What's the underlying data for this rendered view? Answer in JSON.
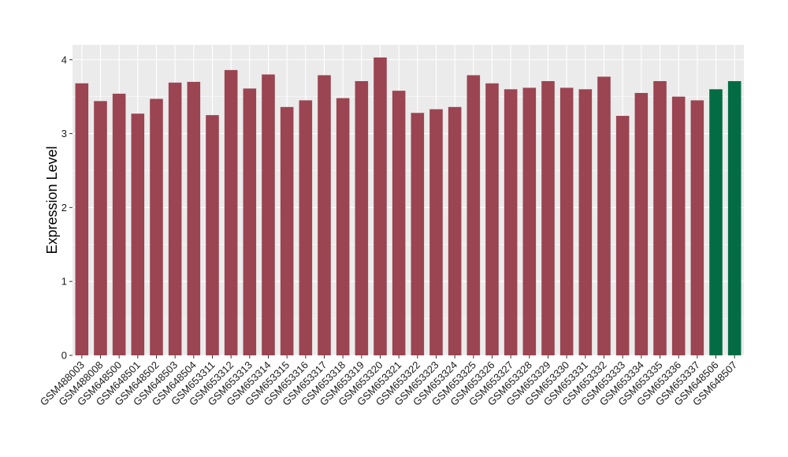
{
  "chart_data": {
    "type": "bar",
    "ylabel": "Expression Level",
    "xlabel": "",
    "ylim": [
      0,
      4.2
    ],
    "yticks": [
      0,
      1,
      2,
      3,
      4
    ],
    "grid": true,
    "colors": {
      "default": "#9b4452",
      "highlight": "#046c45",
      "panel": "#ebebeb",
      "gridline": "#ffffff"
    },
    "categories": [
      "GSM488003",
      "GSM488008",
      "GSM648500",
      "GSM648501",
      "GSM648502",
      "GSM648503",
      "GSM648504",
      "GSM653311",
      "GSM653312",
      "GSM653313",
      "GSM653314",
      "GSM653315",
      "GSM653316",
      "GSM653317",
      "GSM653318",
      "GSM653319",
      "GSM653320",
      "GSM653321",
      "GSM653322",
      "GSM653323",
      "GSM653324",
      "GSM653325",
      "GSM653326",
      "GSM653327",
      "GSM653328",
      "GSM653329",
      "GSM653330",
      "GSM653331",
      "GSM653332",
      "GSM653333",
      "GSM653334",
      "GSM653335",
      "GSM653336",
      "GSM653337",
      "GSM648506",
      "GSM648507"
    ],
    "values": [
      3.68,
      3.44,
      3.54,
      3.27,
      3.47,
      3.69,
      3.7,
      3.25,
      3.86,
      3.61,
      3.8,
      3.36,
      3.45,
      3.79,
      3.48,
      3.71,
      4.03,
      3.58,
      3.28,
      3.33,
      3.36,
      3.79,
      3.68,
      3.6,
      3.62,
      3.71,
      3.62,
      3.6,
      3.77,
      3.24,
      3.55,
      3.71,
      3.5,
      3.45,
      3.6,
      3.71
    ],
    "highlighted": [
      "GSM648506",
      "GSM648507"
    ]
  }
}
